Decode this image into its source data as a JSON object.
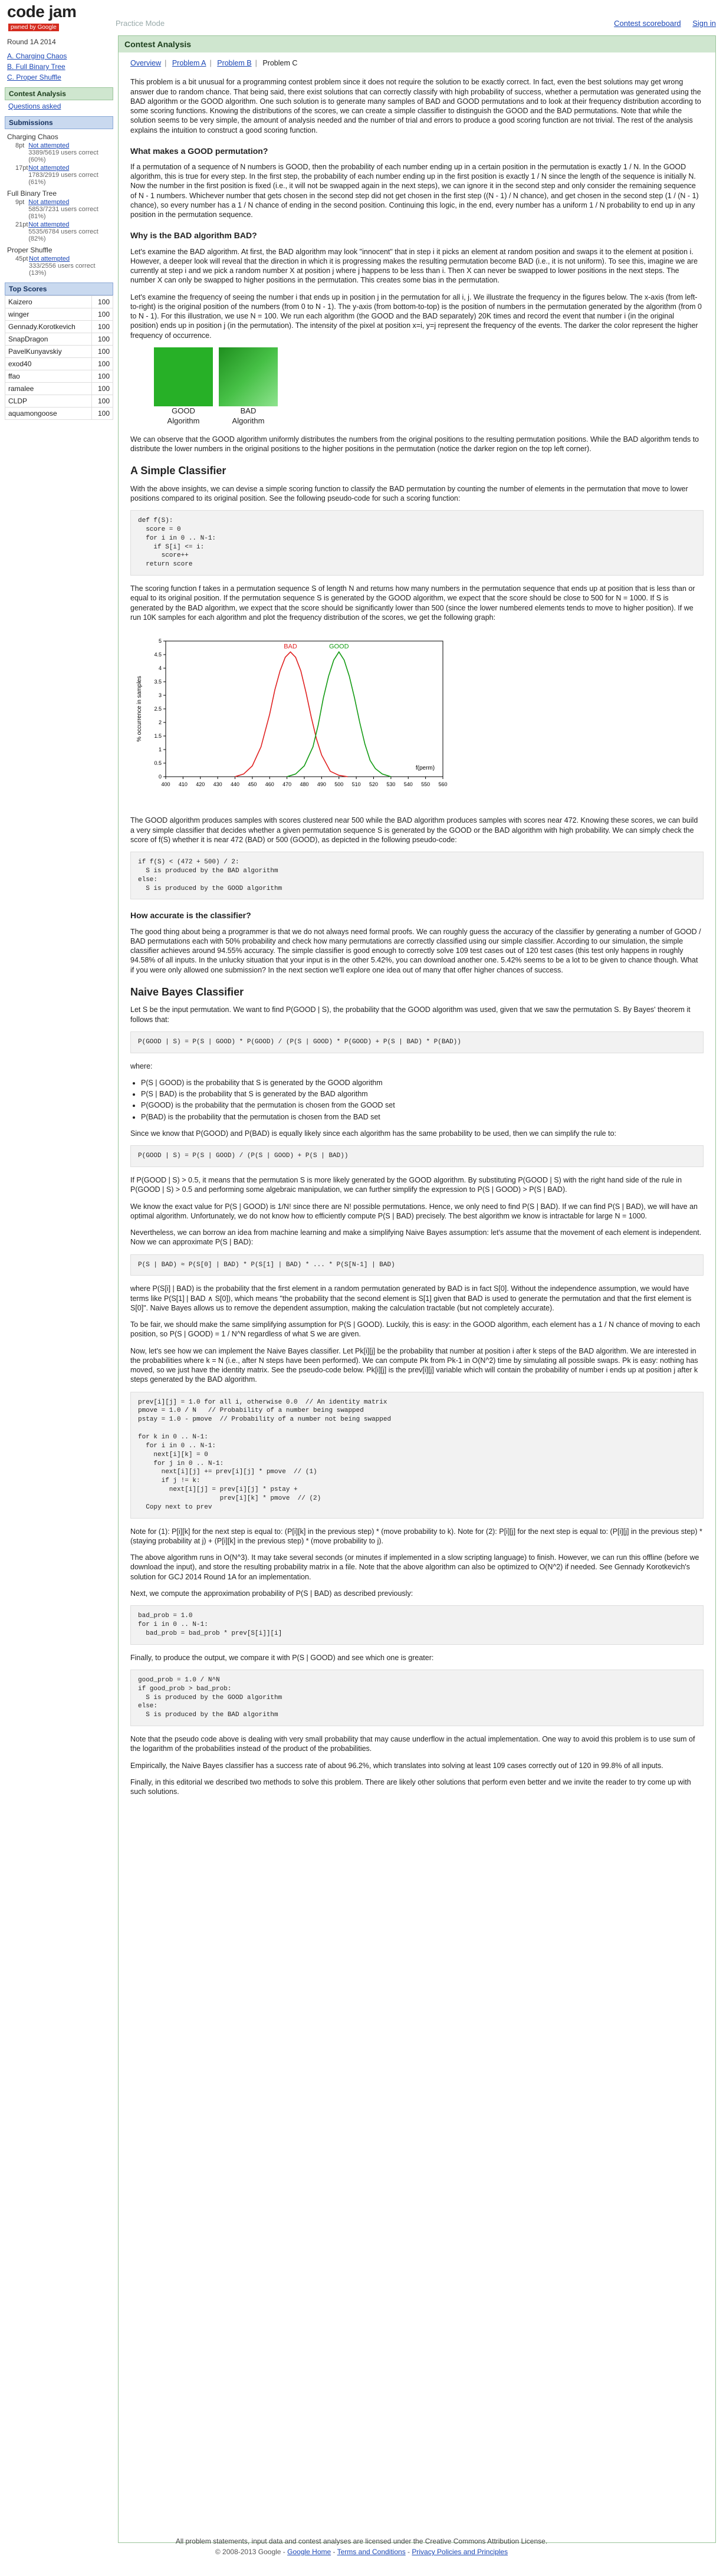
{
  "header": {
    "logo": "code jam",
    "badge": "pwned by Google",
    "practice": "Practice Mode",
    "links": [
      "Contest scoreboard",
      "Sign in"
    ]
  },
  "sidebar": {
    "round": "Round 1A 2014",
    "problems": [
      "A. Charging Chaos",
      "B. Full Binary Tree",
      "C. Proper Shuffle"
    ],
    "contest_analysis": "Contest Analysis",
    "questions": "Questions asked",
    "submissions_title": "Submissions",
    "subs": [
      {
        "name": "Charging Chaos",
        "rows": [
          {
            "pts": "8pt",
            "status": "Not attempted",
            "count": "3389/5619 users correct (60%)"
          },
          {
            "pts": "17pt",
            "status": "Not attempted",
            "count": "1783/2919 users correct (61%)"
          }
        ]
      },
      {
        "name": "Full Binary Tree",
        "rows": [
          {
            "pts": "9pt",
            "status": "Not attempted",
            "count": "5853/7231 users correct (81%)"
          },
          {
            "pts": "21pt",
            "status": "Not attempted",
            "count": "5535/6784 users correct (82%)"
          }
        ]
      },
      {
        "name": "Proper Shuffle",
        "rows": [
          {
            "pts": "45pt",
            "status": "Not attempted",
            "count": "333/2556 users correct (13%)"
          }
        ]
      }
    ],
    "top_scores_title": "Top Scores",
    "scores": [
      {
        "name": "Kaizero",
        "score": "100"
      },
      {
        "name": "winger",
        "score": "100"
      },
      {
        "name": "Gennady.Korotkevich",
        "score": "100"
      },
      {
        "name": "SnapDragon",
        "score": "100"
      },
      {
        "name": "PavelKunyavskiy",
        "score": "100"
      },
      {
        "name": "exod40",
        "score": "100"
      },
      {
        "name": "ffao",
        "score": "100"
      },
      {
        "name": "ramalee",
        "score": "100"
      },
      {
        "name": "CLDP",
        "score": "100"
      },
      {
        "name": "aquamongoose",
        "score": "100"
      }
    ]
  },
  "main": {
    "title": "Contest Analysis",
    "tabs": [
      "Overview",
      "Problem A",
      "Problem B",
      "Problem C"
    ],
    "p_intro": "This problem is a bit unusual for a programming contest problem since it does not require the solution to be exactly correct. In fact, even the best solutions may get wrong answer due to random chance. That being said, there exist solutions that can correctly classify with high probability of success, whether a permutation was generated using the BAD algorithm or the GOOD algorithm. One such solution is to generate many samples of BAD and GOOD permutations and to look at their frequency distribution according to some scoring functions. Knowing the distributions of the scores, we can create a simple classifier to distinguish the GOOD and the BAD permutations. Note that while the solution seems to be very simple, the amount of analysis needed and the number of trial and errors to produce a good scoring function are not trivial. The rest of the analysis explains the intuition to construct a good scoring function.",
    "h_good": "What makes a GOOD permutation?",
    "p_good": "If a permutation of a sequence of N numbers is GOOD, then the probability of each number ending up in a certain position in the permutation is exactly 1 / N. In the GOOD algorithm, this is true for every step. In the first step, the probability of each number ending up in the first position is exactly 1 / N since the length of the sequence is initially N. Now the number in the first position is fixed (i.e., it will not be swapped again in the next steps), we can ignore it in the second step and only consider the remaining sequence of N - 1 numbers. Whichever number that gets chosen in the second step did not get chosen in the first step ((N - 1) / N chance), and get chosen in the second step (1 / (N - 1) chance), so every number has a 1 / N chance of ending in the second position. Continuing this logic, in the end, every number has a uniform 1 / N probability to end up in any position in the permutation sequence.",
    "h_bad": "Why is the BAD algorithm BAD?",
    "p_bad1": "Let's examine the BAD algorithm. At first, the BAD algorithm may look \"innocent\" that in step i it picks an element at random position and swaps it to the element at position i. However, a deeper look will reveal that the direction in which it is progressing makes the resulting permutation become BAD (i.e., it is not uniform). To see this, imagine we are currently at step i and we pick a random number X at position j where j happens to be less than i. Then X can never be swapped to lower positions in the next steps. The number X can only be swapped to higher positions in the permutation. This creates some bias in the permutation.",
    "p_bad2": "Let's examine the frequency of seeing the number i that ends up in position j in the permutation for all i, j. We illustrate the frequency in the figures below. The x-axis (from left-to-right) is the original position of the numbers (from 0 to N - 1). The y-axis (from bottom-to-top) is the position of numbers in the permutation generated by the algorithm (from 0 to N - 1). For this illustration, we use N = 100. We run each algorithm (the GOOD and the BAD separately) 20K times and record the event that number i (in the original position) ends up in position j (in the permutation). The intensity of the pixel at position x=i, y=j represent the frequency of the events. The darker the color represent the higher frequency of occurrence.",
    "squares": [
      "GOOD\nAlgorithm",
      "BAD\nAlgorithm"
    ],
    "p_bad3": "We can observe that the GOOD algorithm uniformly distributes the numbers from the original positions to the resulting permutation positions. While the BAD algorithm tends to distribute the lower numbers in the original positions to the higher positions in the permutation (notice the darker region on the top left corner).",
    "h_simple": "A Simple Classifier",
    "p_simple1": "With the above insights, we can devise a simple scoring function to classify the BAD permutation by counting the number of elements in the permutation that move to lower positions compared to its original position. See the following pseudo-code for such a scoring function:",
    "code1": "def f(S):\n  score = 0\n  for i in 0 .. N-1:\n    if S[i] <= i:\n      score++\n  return score",
    "p_simple2": "The scoring function f takes in a permutation sequence S of length N and returns how many numbers in the permutation sequence that ends up at position that is less than or equal to its original position. If the permutation sequence S is generated by the GOOD algorithm, we expect that the score should be close to 500 for N = 1000. If S is generated by the BAD algorithm, we expect that the score should be significantly lower than 500 (since the lower numbered elements tends to move to higher position). If we run 10K samples for each algorithm and plot the frequency distribution of the scores, we get the following graph:",
    "p_simple3": "The GOOD algorithm produces samples with scores clustered near 500 while the BAD algorithm produces samples with scores near 472. Knowing these scores, we can build a very simple classifier that decides whether a given permutation sequence S is generated by the GOOD or the BAD algorithm with high probability. We can simply check the score of f(S) whether it is near 472 (BAD) or 500 (GOOD), as depicted in the following pseudo-code:",
    "code2": "if f(S) < (472 + 500) / 2:\n  S is produced by the BAD algorithm\nelse:\n  S is produced by the GOOD algorithm",
    "h_accurate": "How accurate is the classifier?",
    "p_accurate": "The good thing about being a programmer is that we do not always need formal proofs. We can roughly guess the accuracy of the classifier by generating a number of GOOD / BAD permutations each with 50% probability and check how many permutations are correctly classified using our simple classifier. According to our simulation, the simple classifier achieves around 94.55% accuracy. The simple classifier is good enough to correctly solve 109 test cases out of 120 test cases (this test only happens in roughly 94.58% of all inputs. In the unlucky situation that your input is in the other 5.42%, you can download another one. 5.42% seems to be a lot to be given to chance though. What if you were only allowed one submission? In the next section we'll explore one idea out of many that offer higher chances of success.",
    "h_bayes": "Naive Bayes Classifier",
    "p_bayes1": "Let S be the input permutation. We want to find P(GOOD | S), the probability that the GOOD algorithm was used, given that we saw the permutation S. By Bayes' theorem it follows that:",
    "code3": "P(GOOD | S) = P(S | GOOD) * P(GOOD) / (P(S | GOOD) * P(GOOD) + P(S | BAD) * P(BAD))",
    "p_where": "where:",
    "bullets": [
      "P(S | GOOD) is the probability that S is generated by the GOOD algorithm",
      "P(S | BAD) is the probability that S is generated by the BAD algorithm",
      "P(GOOD) is the probability that the permutation is chosen from the GOOD set",
      "P(BAD) is the probability that the permutation is chosen from the BAD set"
    ],
    "p_bayes2": "Since we know that P(GOOD) and P(BAD) is equally likely since each algorithm has the same probability to be used, then we can simplify the rule to:",
    "code4": "P(GOOD | S) = P(S | GOOD) / (P(S | GOOD) + P(S | BAD))",
    "p_bayes3": "If P(GOOD | S) > 0.5, it means that the permutation S is more likely generated by the GOOD algorithm. By substituting P(GOOD | S) with the right hand side of the rule in P(GOOD | S) > 0.5 and performing some algebraic manipulation, we can further simplify the expression to P(S | GOOD) > P(S | BAD).",
    "p_bayes4": "We know the exact value for P(S | GOOD) is 1/N! since there are N! possible permutations. Hence, we only need to find P(S | BAD). If we can find P(S | BAD), we will have an optimal algorithm. Unfortunately, we do not know how to efficiently compute P(S | BAD) precisely. The best algorithm we know is intractable for large N = 1000.",
    "p_bayes5": "Nevertheless, we can borrow an idea from machine learning and make a simplifying Naive Bayes assumption: let's assume that the movement of each element is independent. Now we can approximate P(S | BAD):",
    "code5": "P(S | BAD) ≈ P(S[0] | BAD) * P(S[1] | BAD) * ... * P(S[N-1] | BAD)",
    "p_bayes6": "where P(S[i] | BAD) is the probability that the first element in a random permutation generated by BAD is in fact S[0]. Without the independence assumption, we would have terms like P(S[1] | BAD ∧ S[0]), which means \"the probability that the second element is S[1] given that BAD is used to generate the permutation and that the first element is S[0]\". Naive Bayes allows us to remove the dependent assumption, making the calculation tractable (but not completely accurate).",
    "p_bayes7": "To be fair, we should make the same simplifying assumption for P(S | GOOD). Luckily, this is easy: in the GOOD algorithm, each element has a 1 / N chance of moving to each position, so P(S | GOOD) = 1 / N^N regardless of what S we are given.",
    "p_bayes8": "Now, let's see how we can implement the Naive Bayes classifier. Let Pk[i][j] be the probability that number at position i after k steps of the BAD algorithm. We are interested in the probabilities where k = N (i.e., after N steps have been performed). We can compute Pk from Pk-1 in O(N^2) time by simulating all possible swaps. Pk is easy: nothing has moved, so we just have the identity matrix. See the pseudo-code below. Pk[i][j] is the prev[i][j] variable which will contain the probability of number i ends up at position j after k steps generated by the BAD algorithm.",
    "code6": "prev[i][j] = 1.0 for all i, otherwise 0.0  // An identity matrix\npmove = 1.0 / N   // Probability of a number being swapped\npstay = 1.0 - pmove  // Probability of a number not being swapped\n\nfor k in 0 .. N-1:\n  for i in 0 .. N-1:\n    next[i][k] = 0\n    for j in 0 .. N-1:\n      next[i][j] += prev[i][j] * pmove  // (1)\n      if j != k:\n        next[i][j] = prev[i][j] * pstay +\n                     prev[i][k] * pmove  // (2)\n  Copy next to prev",
    "p_bayes9": "Note for (1): P[i][k] for the next step is equal to: (P[i][k] in the previous step) * (move probability to k). Note for (2): P[i][j] for the next step is equal to: (P[i][j] in the previous step) * (staying probability at j) + (P[i][k] in the previous step) * (move probability to j).",
    "p_bayes10": "The above algorithm runs in O(N^3). It may take several seconds (or minutes if implemented in a slow scripting language) to finish. However, we can run this offline (before we download the input), and store the resulting probability matrix in a file. Note that the above algorithm can also be optimized to O(N^2) if needed. See Gennady Korotkevich's solution for GCJ 2014 Round 1A for an implementation.",
    "p_bayes11": "Next, we compute the approximation probability of P(S | BAD) as described previously:",
    "code7": "bad_prob = 1.0\nfor i in 0 .. N-1:\n  bad_prob = bad_prob * prev[S[i]][i]",
    "p_bayes12": "Finally, to produce the output, we compare it with P(S | GOOD) and see which one is greater:",
    "code8": "good_prob = 1.0 / N^N\nif good_prob > bad_prob:\n  S is produced by the GOOD algorithm\nelse:\n  S is produced by the BAD algorithm",
    "p_bayes13": "Note that the pseudo code above is dealing with very small probability that may cause underflow in the actual implementation. One way to avoid this problem is to use sum of the logarithm of the probabilities instead of the product of the probabilities.",
    "p_bayes14": "Empirically, the Naive Bayes classifier has a success rate of about 96.2%, which translates into solving at least 109 cases correctly out of 120 in 99.8% of all inputs.",
    "p_bayes15": "Finally, in this editorial we described two methods to solve this problem. There are likely other solutions that perform even better and we invite the reader to try come up with such solutions."
  },
  "chart_data": {
    "type": "line",
    "xlabel": "f(perm)",
    "ylabel": "% occurrence in samples",
    "xlim": [
      400,
      560
    ],
    "ylim": [
      0,
      5
    ],
    "xticks": [
      400,
      410,
      420,
      430,
      440,
      450,
      460,
      470,
      480,
      490,
      500,
      510,
      520,
      530,
      540,
      550,
      560
    ],
    "yticks": [
      0,
      0.5,
      1,
      1.5,
      2,
      2.5,
      3,
      3.5,
      4,
      4.5,
      5
    ],
    "series": [
      {
        "name": "BAD",
        "color": "#e02020",
        "x": [
          440,
          445,
          450,
          455,
          460,
          463,
          466,
          469,
          472,
          475,
          478,
          481,
          484,
          487,
          490,
          495,
          500,
          505
        ],
        "y": [
          0,
          0.1,
          0.4,
          1.1,
          2.3,
          3.2,
          3.9,
          4.4,
          4.6,
          4.4,
          3.9,
          3.1,
          2.2,
          1.4,
          0.8,
          0.2,
          0.05,
          0
        ]
      },
      {
        "name": "GOOD",
        "color": "#129a12",
        "x": [
          470,
          475,
          480,
          485,
          488,
          491,
          494,
          497,
          500,
          503,
          506,
          509,
          512,
          515,
          518,
          521,
          525,
          530
        ],
        "y": [
          0,
          0.1,
          0.4,
          1.1,
          1.9,
          2.9,
          3.7,
          4.3,
          4.6,
          4.3,
          3.7,
          2.9,
          2.0,
          1.2,
          0.6,
          0.3,
          0.1,
          0
        ]
      }
    ]
  },
  "footer": {
    "line1": "All problem statements, input data and contest analyses are licensed under the Creative Commons Attribution License.",
    "copyright": "© 2008-2013 Google",
    "links": [
      "Google Home",
      "Terms and Conditions",
      "Privacy Policies and Principles"
    ]
  }
}
